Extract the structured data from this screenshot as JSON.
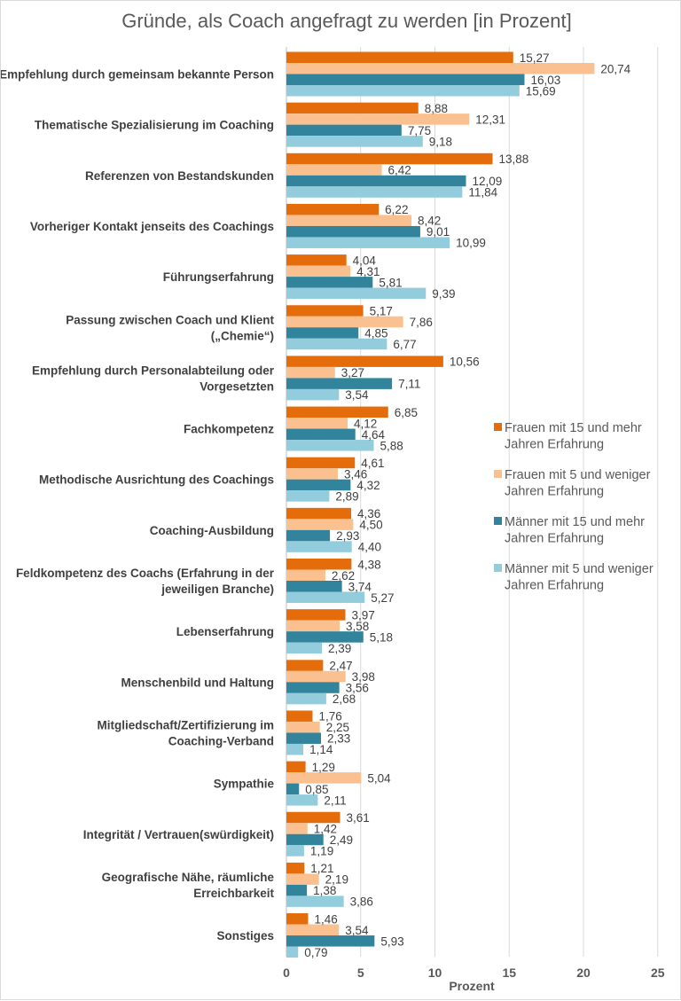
{
  "chart_data": {
    "type": "bar",
    "orientation": "horizontal",
    "title": "Gründe, als Coach angefragt zu werden [in Prozent]",
    "xlabel": "Prozent",
    "ylabel": "",
    "xlim": [
      0,
      25
    ],
    "xticks": [
      0,
      5,
      10,
      15,
      20,
      25
    ],
    "grid": true,
    "legend_position": "right",
    "categories": [
      "Empfehlung durch gemeinsam bekannte Person",
      "Thematische Spezialisierung im Coaching",
      "Referenzen von Bestandskunden",
      "Vorheriger Kontakt jenseits des Coachings",
      "Führungserfahrung",
      "Passung zwischen Coach und Klient („Chemie“)",
      "Empfehlung durch Personalabteilung oder Vorgesetzten",
      "Fachkompetenz",
      "Methodische Ausrichtung des Coachings",
      "Coaching-Ausbildung",
      "Feldkompetenz des Coachs (Erfahrung in der jeweiligen Branche)",
      "Lebenserfahrung",
      "Menschenbild und Haltung",
      "Mitgliedschaft/Zertifizierung im Coaching-Verband",
      "Sympathie",
      "Integrität / Vertrauen(swürdigkeit)",
      "Geografische Nähe, räumliche Erreichbarkeit",
      "Sonstiges"
    ],
    "series": [
      {
        "name": "Frauen mit 15 und mehr Jahren Erfahrung",
        "color": "#E46C0A",
        "values": [
          15.27,
          8.88,
          13.88,
          6.22,
          4.04,
          5.17,
          10.56,
          6.85,
          4.61,
          4.36,
          4.38,
          3.97,
          2.47,
          1.76,
          1.29,
          3.61,
          1.21,
          1.46
        ],
        "labels": [
          "15,27",
          "8,88",
          "13,88",
          "6,22",
          "4,04",
          "5,17",
          "10,56",
          "6,85",
          "4,61",
          "4,36",
          "4,38",
          "3,97",
          "2,47",
          "1,76",
          "1,29",
          "3,61",
          "1,21",
          "1,46"
        ]
      },
      {
        "name": "Frauen mit 5 und weniger Jahren Erfahrung",
        "color": "#FAC090",
        "values": [
          20.74,
          12.31,
          6.42,
          8.42,
          4.31,
          7.86,
          3.27,
          4.12,
          3.46,
          4.5,
          2.62,
          3.58,
          3.98,
          2.25,
          5.04,
          1.42,
          2.19,
          3.54
        ],
        "labels": [
          "20,74",
          "12,31",
          "6,42",
          "8,42",
          "4,31",
          "7,86",
          "3,27",
          "4,12",
          "3,46",
          "4,50",
          "2,62",
          "3,58",
          "3,98",
          "2,25",
          "5,04",
          "1,42",
          "2,19",
          "3,54"
        ]
      },
      {
        "name": "Männer mit 15 und mehr Jahren Erfahrung",
        "color": "#31849B",
        "values": [
          16.03,
          7.75,
          12.09,
          9.01,
          5.81,
          4.85,
          7.11,
          4.64,
          4.32,
          2.93,
          3.74,
          5.18,
          3.56,
          2.33,
          0.85,
          2.49,
          1.38,
          5.93
        ],
        "labels": [
          "16,03",
          "7,75",
          "12,09",
          "9,01",
          "5,81",
          "4,85",
          "7,11",
          "4,64",
          "4,32",
          "2,93",
          "3,74",
          "5,18",
          "3,56",
          "2,33",
          "0,85",
          "2,49",
          "1,38",
          "5,93"
        ]
      },
      {
        "name": "Männer mit 5 und weniger Jahren Erfahrung",
        "color": "#93CDDD",
        "values": [
          15.69,
          9.18,
          11.84,
          10.99,
          9.39,
          6.77,
          3.54,
          5.88,
          2.89,
          4.4,
          5.27,
          2.39,
          2.68,
          1.14,
          2.11,
          1.19,
          3.86,
          0.79
        ],
        "labels": [
          "15,69",
          "9,18",
          "11,84",
          "10,99",
          "9,39",
          "6,77",
          "3,54",
          "5,88",
          "2,89",
          "4,40",
          "5,27",
          "2,39",
          "2,68",
          "1,14",
          "2,11",
          "1,19",
          "3,86",
          "0,79"
        ]
      }
    ]
  }
}
